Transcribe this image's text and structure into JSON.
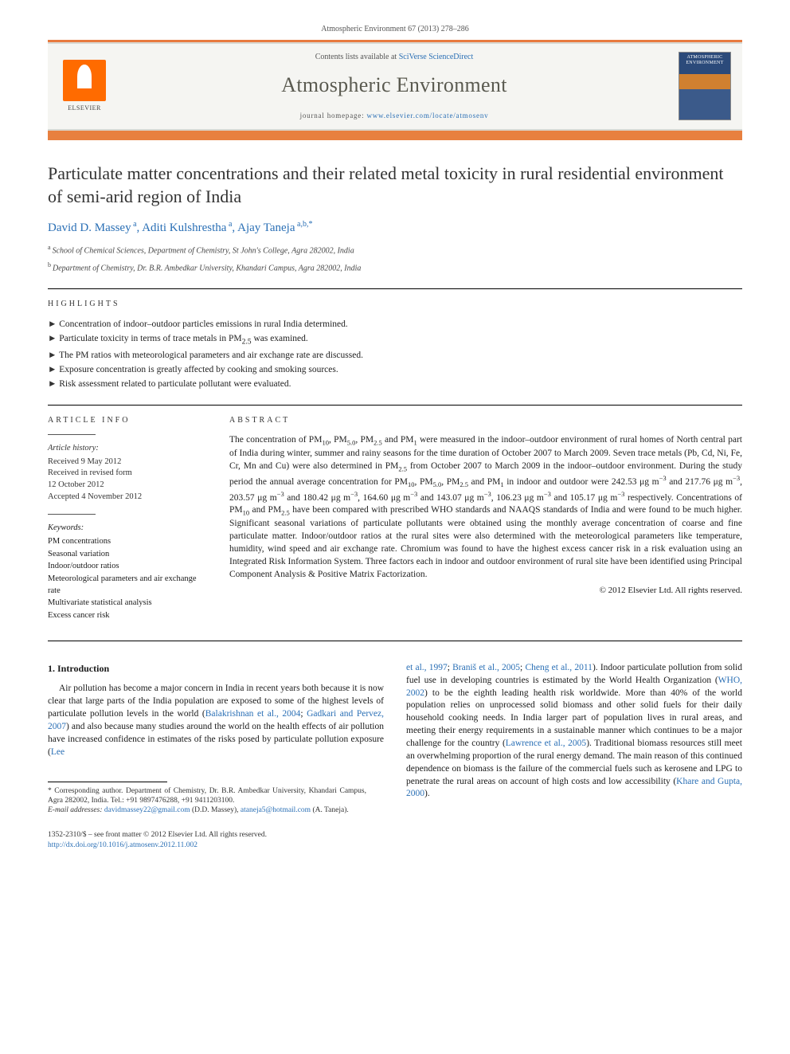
{
  "top_citation": "Atmospheric Environment 67 (2013) 278–286",
  "header": {
    "contents_prefix": "Contents lists available at ",
    "contents_link": "SciVerse ScienceDirect",
    "journal_title": "Atmospheric Environment",
    "homepage_prefix": "journal homepage: ",
    "homepage_url": "www.elsevier.com/locate/atmosenv",
    "elsevier_label": "ELSEVIER",
    "cover_label_1": "ATMOSPHERIC",
    "cover_label_2": "ENVIRONMENT"
  },
  "title": "Particulate matter concentrations and their related metal toxicity in rural residential environment of semi-arid region of India",
  "authors_html": "David D. Massey<sup>a</sup>, Aditi Kulshrestha<sup>a</sup>, Ajay Taneja<sup>a,b,*</sup>",
  "authors": [
    {
      "name": "David D. Massey",
      "aff_marks": "a"
    },
    {
      "name": "Aditi Kulshrestha",
      "aff_marks": "a"
    },
    {
      "name": "Ajay Taneja",
      "aff_marks": "a,b,*"
    }
  ],
  "affiliations": [
    {
      "mark": "a",
      "text": "School of Chemical Sciences, Department of Chemistry, St John's College, Agra 282002, India"
    },
    {
      "mark": "b",
      "text": "Department of Chemistry, Dr. B.R. Ambedkar University, Khandari Campus, Agra 282002, India"
    }
  ],
  "highlights_heading": "HIGHLIGHTS",
  "highlights": [
    "Concentration of indoor–outdoor particles emissions in rural India determined.",
    "Particulate toxicity in terms of trace metals in PM2.5 was examined.",
    "The PM ratios with meteorological parameters and air exchange rate are discussed.",
    "Exposure concentration is greatly affected by cooking and smoking sources.",
    "Risk assessment related to particulate pollutant were evaluated."
  ],
  "article_info_heading": "ARTICLE INFO",
  "history_label": "Article history:",
  "history": [
    "Received 9 May 2012",
    "Received in revised form",
    "12 October 2012",
    "Accepted 4 November 2012"
  ],
  "keywords_label": "Keywords:",
  "keywords": [
    "PM concentrations",
    "Seasonal variation",
    "Indoor/outdoor ratios",
    "Meteorological parameters and air exchange rate",
    "Multivariate statistical analysis",
    "Excess cancer risk"
  ],
  "abstract_heading": "ABSTRACT",
  "abstract": "The concentration of PM10, PM5.0, PM2.5 and PM1 were measured in the indoor–outdoor environment of rural homes of North central part of India during winter, summer and rainy seasons for the time duration of October 2007 to March 2009. Seven trace metals (Pb, Cd, Ni, Fe, Cr, Mn and Cu) were also determined in PM2.5 from October 2007 to March 2009 in the indoor–outdoor environment. During the study period the annual average concentration for PM10, PM5.0, PM2.5 and PM1 in indoor and outdoor were 242.53 μg m−3 and 217.76 μg m−3, 203.57 μg m−3 and 180.42 μg m−3, 164.60 μg m−3 and 143.07 μg m−3, 106.23 μg m−3 and 105.17 μg m−3 respectively. Concentrations of PM10 and PM2.5 have been compared with prescribed WHO standards and NAAQS standards of India and were found to be much higher. Significant seasonal variations of particulate pollutants were obtained using the monthly average concentration of coarse and fine particulate matter. Indoor/outdoor ratios at the rural sites were also determined with the meteorological parameters like temperature, humidity, wind speed and air exchange rate. Chromium was found to have the highest excess cancer risk in a risk evaluation using an Integrated Risk Information System. Three factors each in indoor and outdoor environment of rural site have been identified using Principal Component Analysis & Positive Matrix Factorization.",
  "copyright": "© 2012 Elsevier Ltd. All rights reserved.",
  "intro_heading": "1. Introduction",
  "intro_col1": {
    "text_before": "Air pollution has become a major concern in India in recent years both because it is now clear that large parts of the India population are exposed to some of the highest levels of particulate pollution levels in the world (",
    "ref1": "Balakrishnan et al., 2004",
    "sep1": "; ",
    "ref2": "Gadkari and Pervez, 2007",
    "text_mid": ") and also because many studies around the world on the health effects of air pollution have increased confidence in estimates of the risks posed by particulate pollution exposure (",
    "ref3": "Lee"
  },
  "intro_col2": {
    "ref3_cont": "et al., 1997",
    "sep2": "; ",
    "ref4": "Braniš et al., 2005",
    "sep3": "; ",
    "ref5": "Cheng et al., 2011",
    "text_after_refs": "). Indoor particulate pollution from solid fuel use in developing countries is estimated by the World Health Organization (",
    "ref6": "WHO, 2002",
    "text2": ") to be the eighth leading health risk worldwide. More than 40% of the world population relies on unprocessed solid biomass and other solid fuels for their daily household cooking needs. In India larger part of population lives in rural areas, and meeting their energy requirements in a sustainable manner which continues to be a major challenge for the country (",
    "ref7": "Lawrence et al., 2005",
    "text3": "). Traditional biomass resources still meet an overwhelming proportion of the rural energy demand. The main reason of this continued dependence on biomass is the failure of the commercial fuels such as kerosene and LPG to penetrate the rural areas on account of high costs and low accessibility (",
    "ref8": "Khare and Gupta, 2000",
    "text4": ")."
  },
  "footnotes": {
    "corr": "* Corresponding author. Department of Chemistry, Dr. B.R. Ambedkar University, Khandari Campus, Agra 282002, India. Tel.: +91 9897476288, +91 9411203100.",
    "email_label": "E-mail addresses:",
    "email1": "davidmassey22@gmail.com",
    "email1_owner": "(D.D. Massey),",
    "email2": "ataneja5@hotmail.com",
    "email2_owner": "(A. Taneja)."
  },
  "bottom": {
    "issn": "1352-2310/$ – see front matter © 2012 Elsevier Ltd. All rights reserved.",
    "doi_label": "http://dx.doi.org/",
    "doi": "10.1016/j.atmosenv.2012.11.002"
  },
  "colors": {
    "orange_bar": "#e8803f",
    "link": "#2a6fb5",
    "journal_title": "#5a5a50"
  }
}
